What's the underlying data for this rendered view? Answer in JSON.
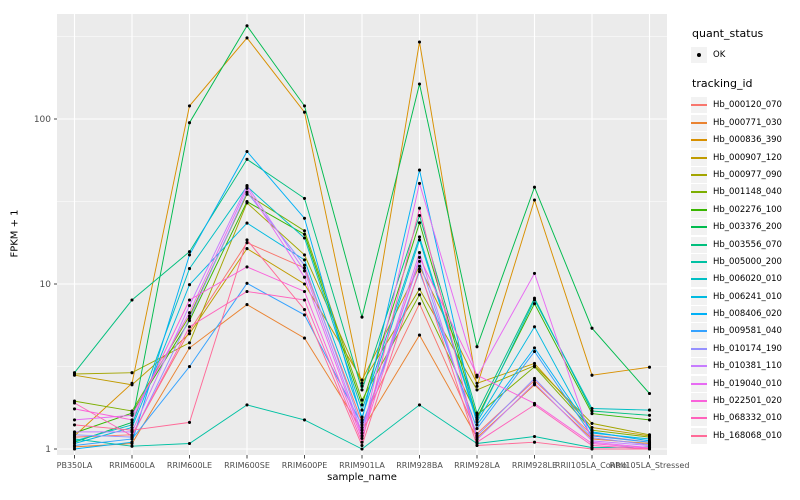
{
  "figure": {
    "x_axis_title": "sample_name",
    "y_axis_title": "FPKM + 1"
  },
  "legend": {
    "quant_status_title": "quant_status",
    "quant_status_items": [
      {
        "label": "OK",
        "marker": "black-point"
      }
    ],
    "tracking_title": "tracking_id"
  },
  "colors": {
    "panel_background": "#EBEBEB",
    "grid": "#FFFFFF",
    "tick_text": "#4D4D4D",
    "tick_mark": "#333333",
    "point": "#000000",
    "legend_key_background": "#F2F2F2"
  },
  "chart_data": {
    "type": "line",
    "title": "",
    "xlabel": "sample_name",
    "ylabel": "FPKM + 1",
    "yscale": "log10",
    "ylim": [
      0.92,
      433
    ],
    "y_ticks": [
      1,
      10,
      100
    ],
    "y_tick_labels": [
      "1",
      "10",
      "100"
    ],
    "y_minor_ticks": [
      3.162,
      31.62,
      316.2
    ],
    "grid": "white major+minor on gray panel",
    "legend_position": "right",
    "points": "black dot at every vertex",
    "categories": [
      "PB350LA",
      "RRIM600LA",
      "RRIM600LE",
      "RRIM600SE",
      "RRIM600PE",
      "RRIM901LA",
      "RRIM928BA",
      "RRIM928LA",
      "RRIM928LE",
      "RRII105LA_Control",
      "RRII105LA_Stressed"
    ],
    "series": [
      {
        "name": "Hb_000120_070",
        "color": "#F8766D",
        "values": [
          1.18,
          1.22,
          5.2,
          17.8,
          12.5,
          1.45,
          7.6,
          1.24,
          2.6,
          1.22,
          1.1
        ]
      },
      {
        "name": "Hb_000771_030",
        "color": "#EA8331",
        "values": [
          1.03,
          1.08,
          4.1,
          7.5,
          4.7,
          1.3,
          4.9,
          1.17,
          2.45,
          1.15,
          1.08
        ]
      },
      {
        "name": "Hb_000836_390",
        "color": "#D89000",
        "values": [
          1.2,
          2.5,
          120,
          310,
          110,
          2.4,
          293,
          2.4,
          32.3,
          2.8,
          3.13
        ]
      },
      {
        "name": "Hb_000907_120",
        "color": "#C09B00",
        "values": [
          2.8,
          2.45,
          5.0,
          16.4,
          10.0,
          2.62,
          12.8,
          2.5,
          3.3,
          1.35,
          1.2
        ]
      },
      {
        "name": "Hb_000977_090",
        "color": "#A3A500",
        "values": [
          2.85,
          2.9,
          4.4,
          31.0,
          15.0,
          2.5,
          9.3,
          2.28,
          3.2,
          1.43,
          1.22
        ]
      },
      {
        "name": "Hb_001148_040",
        "color": "#7CAE00",
        "values": [
          1.95,
          1.7,
          6.4,
          35.0,
          21.0,
          1.98,
          8.6,
          1.6,
          3.15,
          1.3,
          1.18
        ]
      },
      {
        "name": "Hb_002276_100",
        "color": "#39B600",
        "values": [
          1.25,
          1.65,
          6.0,
          31.6,
          20.0,
          1.85,
          23.5,
          1.55,
          7.6,
          1.64,
          1.5
        ]
      },
      {
        "name": "Hb_003376_200",
        "color": "#00BB4E",
        "values": [
          1.1,
          1.45,
          95.0,
          367,
          120,
          6.3,
          163,
          4.17,
          38.6,
          5.4,
          2.17
        ]
      },
      {
        "name": "Hb_003556_070",
        "color": "#00BF7D",
        "values": [
          2.9,
          8.0,
          15.7,
          57.0,
          33.0,
          2.28,
          26.0,
          1.65,
          8.2,
          1.7,
          1.6
        ]
      },
      {
        "name": "Hb_005000_200",
        "color": "#00C1A3",
        "values": [
          1.15,
          1.04,
          1.08,
          1.85,
          1.5,
          1.0,
          1.85,
          1.08,
          1.19,
          1.02,
          1.03
        ]
      },
      {
        "name": "Hb_006020_010",
        "color": "#00BFC4",
        "values": [
          1.12,
          1.4,
          12.4,
          39.0,
          19.0,
          1.72,
          19.3,
          1.5,
          8.0,
          1.76,
          1.72
        ]
      },
      {
        "name": "Hb_006241_010",
        "color": "#00BAE0",
        "values": [
          1.08,
          1.35,
          9.9,
          23.4,
          14.0,
          1.56,
          18.5,
          1.46,
          5.5,
          1.25,
          1.15
        ]
      },
      {
        "name": "Hb_008406_020",
        "color": "#00B0F6",
        "values": [
          1.0,
          1.1,
          15.0,
          63.5,
          25.0,
          1.5,
          49.0,
          1.4,
          4.1,
          1.27,
          1.12
        ]
      },
      {
        "name": "Hb_009581_040",
        "color": "#35A2FF",
        "values": [
          1.05,
          1.15,
          3.16,
          10.1,
          6.5,
          1.4,
          11.9,
          1.33,
          3.9,
          1.2,
          1.1
        ]
      },
      {
        "name": "Hb_010174_190",
        "color": "#9590FF",
        "values": [
          1.22,
          1.18,
          6.2,
          36.0,
          13.0,
          1.35,
          13.7,
          1.2,
          2.68,
          1.17,
          1.06
        ]
      },
      {
        "name": "Hb_010381_110",
        "color": "#C77CFF",
        "values": [
          1.27,
          1.27,
          7.4,
          39.5,
          12.0,
          1.25,
          15.5,
          1.14,
          2.5,
          1.12,
          1.05
        ]
      },
      {
        "name": "Hb_019040_010",
        "color": "#E76BF3",
        "values": [
          1.5,
          1.6,
          6.7,
          38.0,
          11.0,
          1.2,
          40.7,
          2.73,
          11.6,
          1.1,
          1.02
        ]
      },
      {
        "name": "Hb_022501_020",
        "color": "#FA62DB",
        "values": [
          1.75,
          1.5,
          8.0,
          12.7,
          9.0,
          1.16,
          14.5,
          2.8,
          1.89,
          1.08,
          1.01
        ]
      },
      {
        "name": "Hb_068332_010",
        "color": "#FF62BC",
        "values": [
          1.9,
          1.2,
          5.5,
          9.0,
          8.0,
          1.1,
          28.8,
          1.1,
          1.85,
          1.05,
          1.0
        ]
      },
      {
        "name": "Hb_168068_010",
        "color": "#FF6A98",
        "values": [
          1.4,
          1.3,
          1.45,
          18.5,
          7.0,
          1.05,
          12.3,
          1.05,
          1.1,
          1.0,
          1.0
        ]
      }
    ]
  }
}
